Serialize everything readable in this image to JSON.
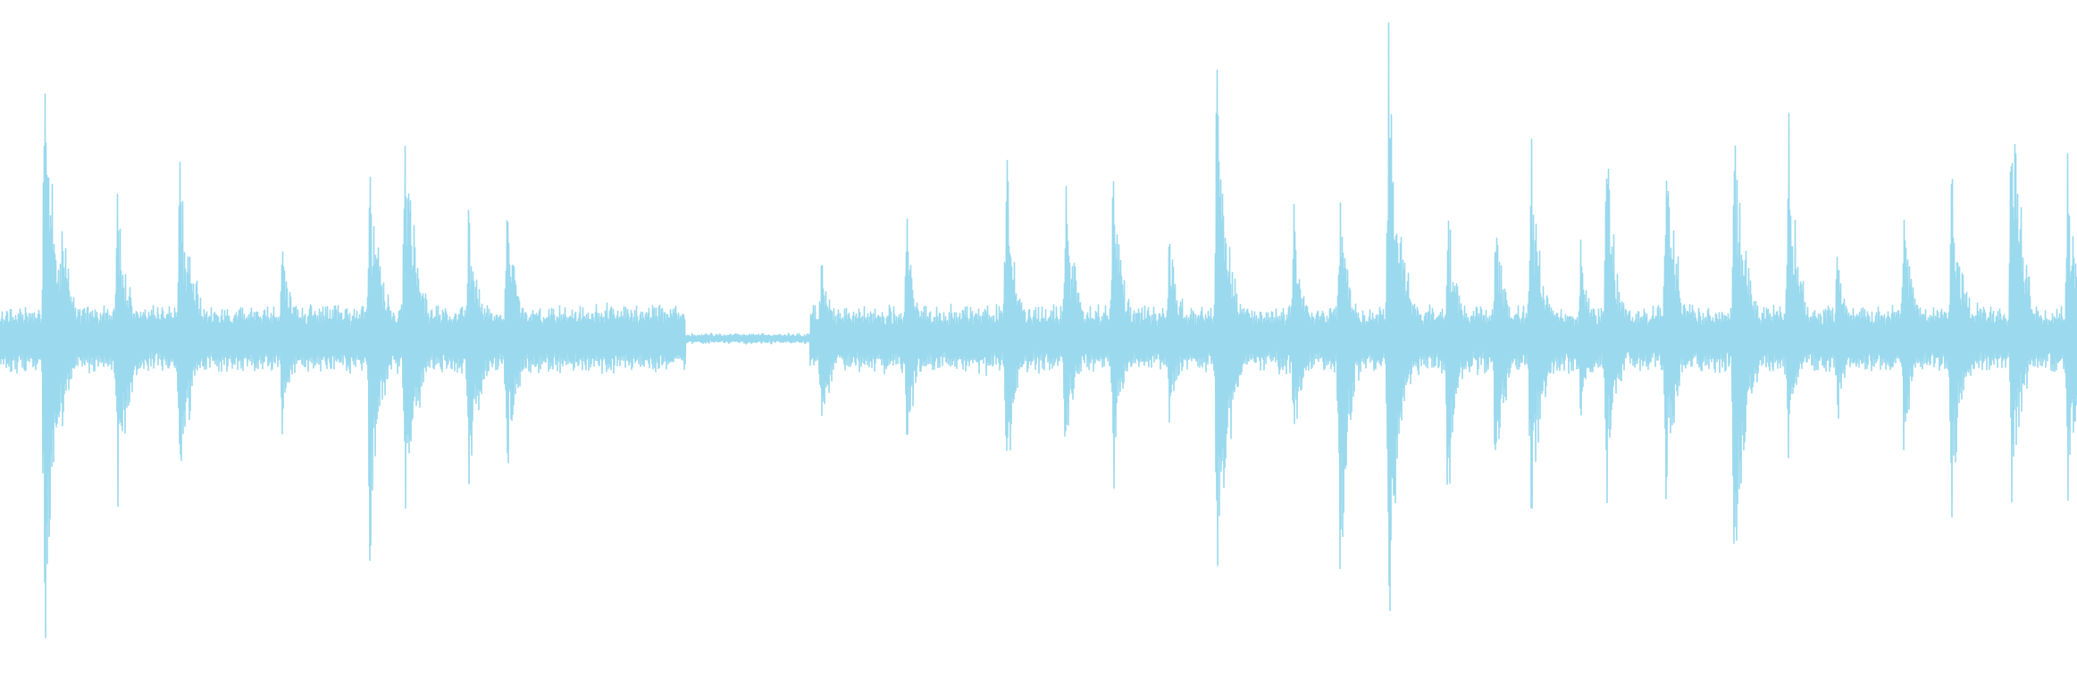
{
  "waveform": {
    "color": "#9ad9ee",
    "segments": [
      {
        "t0": 0.0,
        "t1": 0.33,
        "floor": 0.06,
        "noise": 0.045
      },
      {
        "t0": 0.33,
        "t1": 0.39,
        "floor": 0.006,
        "noise": 0.01
      },
      {
        "t0": 0.39,
        "t1": 1.0,
        "floor": 0.055,
        "noise": 0.05
      }
    ],
    "transients": [
      {
        "t": 0.0215,
        "top": 0.99,
        "bottom": 0.99,
        "decay": 0.006
      },
      {
        "t": 0.03,
        "top": 0.42,
        "bottom": 0.36,
        "decay": 0.005
      },
      {
        "t": 0.0565,
        "top": 0.45,
        "bottom": 0.6,
        "decay": 0.006
      },
      {
        "t": 0.0865,
        "top": 0.58,
        "bottom": 0.51,
        "decay": 0.007
      },
      {
        "t": 0.136,
        "top": 0.32,
        "bottom": 0.36,
        "decay": 0.005
      },
      {
        "t": 0.178,
        "top": 0.61,
        "bottom": 0.69,
        "decay": 0.006
      },
      {
        "t": 0.195,
        "top": 0.72,
        "bottom": 0.67,
        "decay": 0.006
      },
      {
        "t": 0.2255,
        "top": 0.42,
        "bottom": 0.54,
        "decay": 0.006
      },
      {
        "t": 0.244,
        "top": 0.45,
        "bottom": 0.45,
        "decay": 0.006
      },
      {
        "t": 0.3955,
        "top": 0.29,
        "bottom": 0.37,
        "decay": 0.005
      },
      {
        "t": 0.4365,
        "top": 0.39,
        "bottom": 0.4,
        "decay": 0.005
      },
      {
        "t": 0.4745,
        "top": 0.1,
        "bottom": 0.12,
        "decay": 0.005
      },
      {
        "t": 0.4845,
        "top": 0.6,
        "bottom": 0.56,
        "decay": 0.005
      },
      {
        "t": 0.513,
        "top": 0.5,
        "bottom": 0.4,
        "decay": 0.006
      },
      {
        "t": 0.536,
        "top": 0.56,
        "bottom": 0.49,
        "decay": 0.005
      },
      {
        "t": 0.563,
        "top": 0.38,
        "bottom": 0.27,
        "decay": 0.006
      },
      {
        "t": 0.586,
        "top": 0.93,
        "bottom": 0.99,
        "decay": 0.006
      },
      {
        "t": 0.623,
        "top": 0.41,
        "bottom": 0.36,
        "decay": 0.005
      },
      {
        "t": 0.645,
        "top": 0.51,
        "bottom": 0.81,
        "decay": 0.005
      },
      {
        "t": 0.6685,
        "top": 1.0,
        "bottom": 1.0,
        "decay": 0.006
      },
      {
        "t": 0.697,
        "top": 0.43,
        "bottom": 0.56,
        "decay": 0.005
      },
      {
        "t": 0.72,
        "top": 0.4,
        "bottom": 0.51,
        "decay": 0.005
      },
      {
        "t": 0.737,
        "top": 0.66,
        "bottom": 0.63,
        "decay": 0.006
      },
      {
        "t": 0.761,
        "top": 0.3,
        "bottom": 0.29,
        "decay": 0.005
      },
      {
        "t": 0.7735,
        "top": 0.65,
        "bottom": 0.59,
        "decay": 0.005
      },
      {
        "t": 0.802,
        "top": 0.67,
        "bottom": 0.51,
        "decay": 0.006
      },
      {
        "t": 0.835,
        "top": 0.71,
        "bottom": 0.91,
        "decay": 0.006
      },
      {
        "t": 0.861,
        "top": 0.72,
        "bottom": 0.39,
        "decay": 0.005
      },
      {
        "t": 0.8845,
        "top": 0.31,
        "bottom": 0.28,
        "decay": 0.005
      },
      {
        "t": 0.9165,
        "top": 0.46,
        "bottom": 0.38,
        "decay": 0.005
      },
      {
        "t": 0.9395,
        "top": 0.54,
        "bottom": 0.57,
        "decay": 0.006
      },
      {
        "t": 0.9685,
        "top": 0.86,
        "bottom": 0.55,
        "decay": 0.006
      },
      {
        "t": 0.9955,
        "top": 0.6,
        "bottom": 0.5,
        "decay": 0.006
      }
    ]
  }
}
